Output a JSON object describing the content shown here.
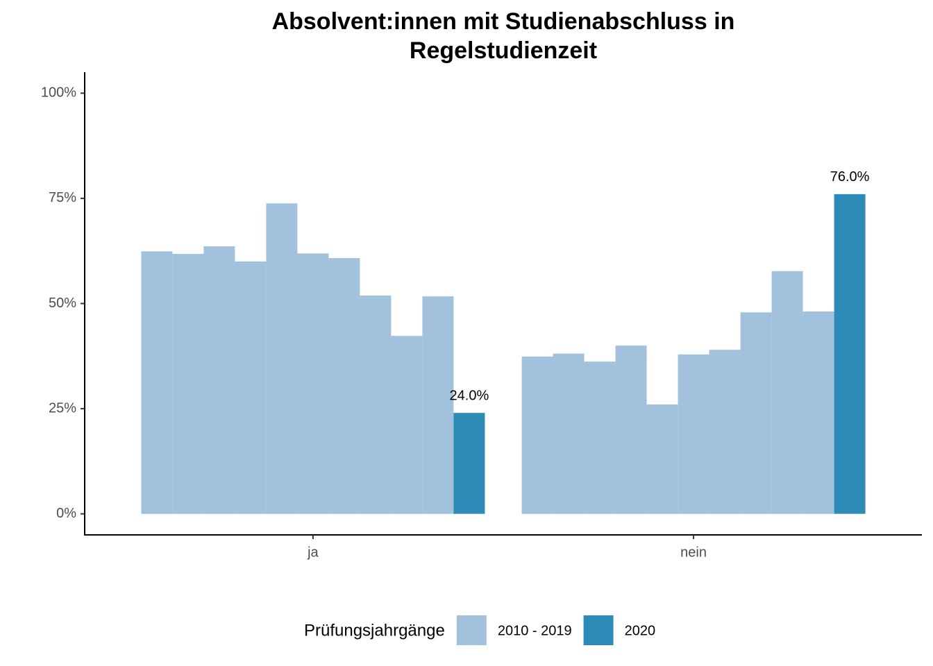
{
  "chart_data": {
    "type": "bar",
    "title": "Absolvent:innen mit Studienabschluss in Regelstudienzeit",
    "categories": [
      "ja",
      "nein"
    ],
    "series": [
      {
        "name": "2010 - 2019",
        "color": "#a1c1dd",
        "values": [
          [
            62.4,
            61.8,
            63.6,
            60.0,
            73.8,
            61.9,
            60.8,
            51.9,
            42.3,
            51.7
          ],
          [
            37.4,
            38.1,
            36.2,
            40.0,
            26.0,
            37.9,
            39.0,
            47.9,
            57.7,
            48.1
          ]
        ]
      },
      {
        "name": "2020",
        "color": "#2e8bb8",
        "values": [
          24,
          76
        ],
        "value_labels": [
          "24.0%",
          "76.0%"
        ]
      }
    ],
    "legend_title": "Prüfungsjahrgänge",
    "legend_position": "bottom",
    "ylim": [
      -5,
      105
    ],
    "yticks": [
      {
        "value": 0,
        "label": "0%"
      },
      {
        "value": 25,
        "label": "25%"
      },
      {
        "value": 50,
        "label": "50%"
      },
      {
        "value": 75,
        "label": "75%"
      },
      {
        "value": 100,
        "label": "100%"
      }
    ],
    "grid": false
  }
}
